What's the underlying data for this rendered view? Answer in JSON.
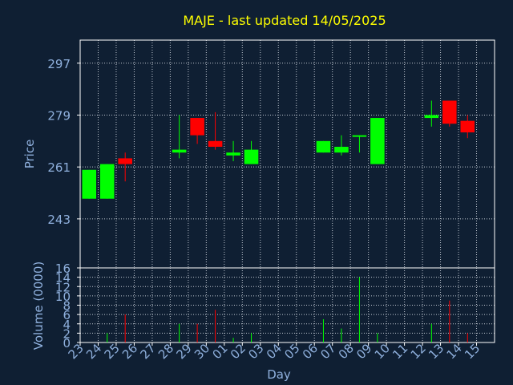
{
  "chart_data": {
    "type": "candlestick",
    "title": "MAJE - last updated 14/05/2025",
    "xlabel": "Day",
    "ylabel": "Price",
    "volume_label": "Volume (0000)",
    "price_ticks": [
      "297",
      "279",
      "261",
      "243"
    ],
    "price_tick_values": [
      297,
      279,
      261,
      243
    ],
    "price_ylim": [
      226,
      305
    ],
    "volume_ticks": [
      "16",
      "14",
      "12",
      "10",
      "8",
      "6",
      "4",
      "2",
      "0"
    ],
    "volume_tick_values": [
      16,
      14,
      12,
      10,
      8,
      6,
      4,
      2,
      0
    ],
    "volume_ylim": [
      0,
      16
    ],
    "days": [
      "23",
      "24",
      "25",
      "26",
      "27",
      "28",
      "29",
      "30",
      "01",
      "02",
      "03",
      "04",
      "05",
      "06",
      "07",
      "08",
      "09",
      "10",
      "11",
      "12",
      "13",
      "14",
      "15"
    ],
    "candles": [
      {
        "day": "23",
        "open": 250,
        "high": 260,
        "low": 250,
        "close": 260
      },
      {
        "day": "24",
        "open": 250,
        "high": 262,
        "low": 250,
        "close": 262
      },
      {
        "day": "25",
        "open": 264,
        "high": 266,
        "low": 256,
        "close": 262
      },
      {
        "day": "28",
        "open": 266,
        "high": 279,
        "low": 264,
        "close": 267
      },
      {
        "day": "29",
        "open": 278,
        "high": 278,
        "low": 269,
        "close": 272
      },
      {
        "day": "30",
        "open": 270,
        "high": 280,
        "low": 267,
        "close": 268
      },
      {
        "day": "01",
        "open": 265,
        "high": 270,
        "low": 263,
        "close": 266
      },
      {
        "day": "02",
        "open": 262,
        "high": 270,
        "low": 262,
        "close": 267
      },
      {
        "day": "06",
        "open": 266,
        "high": 270,
        "low": 266,
        "close": 270
      },
      {
        "day": "07",
        "open": 266,
        "high": 272,
        "low": 265,
        "close": 268
      },
      {
        "day": "08",
        "open": 272,
        "high": 272,
        "low": 266,
        "close": 272
      },
      {
        "day": "09",
        "open": 262,
        "high": 278,
        "low": 262,
        "close": 278
      },
      {
        "day": "12",
        "open": 278,
        "high": 284,
        "low": 275,
        "close": 279
      },
      {
        "day": "13",
        "open": 284,
        "high": 284,
        "low": 275,
        "close": 276
      },
      {
        "day": "14",
        "open": 277,
        "high": 279,
        "low": 271,
        "close": 273
      }
    ],
    "volumes": [
      {
        "day": "23",
        "value": 0
      },
      {
        "day": "24",
        "value": 2
      },
      {
        "day": "25",
        "value": 6
      },
      {
        "day": "28",
        "value": 4
      },
      {
        "day": "29",
        "value": 4
      },
      {
        "day": "30",
        "value": 7
      },
      {
        "day": "01",
        "value": 1
      },
      {
        "day": "02",
        "value": 2
      },
      {
        "day": "06",
        "value": 5
      },
      {
        "day": "07",
        "value": 3
      },
      {
        "day": "08",
        "value": 14
      },
      {
        "day": "09",
        "value": 2
      },
      {
        "day": "12",
        "value": 4
      },
      {
        "day": "13",
        "value": 9
      },
      {
        "day": "14",
        "value": 2
      }
    ],
    "grid": true,
    "colors": {
      "background": "#0f1f33",
      "axis": "#ffffff",
      "grid": "#bfc6d0",
      "up": "#00ff00",
      "down": "#ff0000",
      "title": "#ffff00",
      "tick_text": "#8fb0dd"
    }
  }
}
